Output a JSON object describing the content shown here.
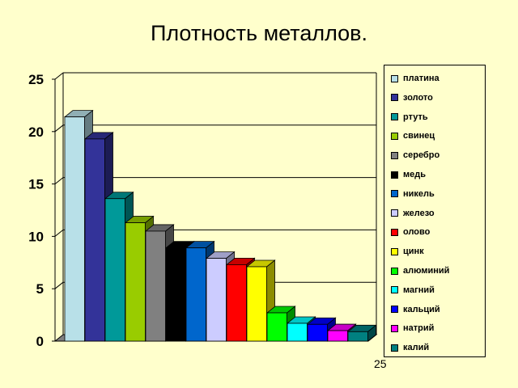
{
  "chart_data": {
    "type": "bar",
    "title": "Плотность металлов.",
    "categories": [
      "платина",
      "золото",
      "ртуть",
      "свинец",
      "серебро",
      "медь",
      "никель",
      "железо",
      "олово",
      "цинк",
      "алюминий",
      "магний",
      "кальций",
      "натрий",
      "калий"
    ],
    "values": [
      21.4,
      19.3,
      13.6,
      11.3,
      10.5,
      8.9,
      8.9,
      7.9,
      7.3,
      7.1,
      2.7,
      1.7,
      1.6,
      1.0,
      0.9
    ],
    "colors": [
      "#b8e0e8",
      "#333399",
      "#009999",
      "#99cc00",
      "#808080",
      "#000000",
      "#0066cc",
      "#ccccff",
      "#ff0000",
      "#ffff00",
      "#00ff00",
      "#00ffff",
      "#0000ff",
      "#ff00ff",
      "#008080"
    ],
    "ylim": [
      0,
      25
    ],
    "yticks": [
      "0",
      "5",
      "10",
      "15",
      "20",
      "25"
    ],
    "xlabel": "",
    "ylabel": "",
    "grid": true,
    "legend_placement": "right",
    "style": "3d"
  },
  "page_number": "25"
}
